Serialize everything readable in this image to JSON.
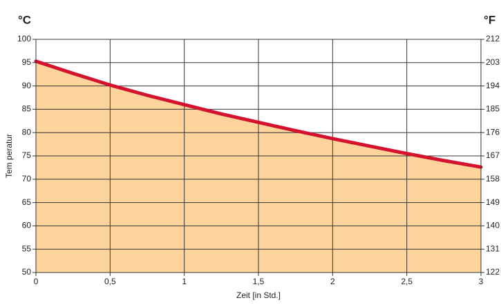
{
  "chart_data": {
    "type": "area",
    "left_unit": "°C",
    "right_unit": "°F",
    "xlabel": "Zeit [in Std.]",
    "ylabel": "Tem peratur",
    "x": [
      0,
      0.25,
      0.5,
      0.75,
      1,
      1.25,
      1.5,
      1.75,
      2,
      2.25,
      2.5,
      2.75,
      3
    ],
    "series": [
      {
        "color": "#d4122e",
        "fill_color": "#fcd49c",
        "values": [
          95.3,
          92.7,
          90.2,
          88.0,
          86.0,
          84.0,
          82.2,
          80.4,
          78.7,
          77.1,
          75.5,
          74.0,
          72.6
        ]
      }
    ],
    "xlim": [
      0,
      3
    ],
    "xticks": [
      0,
      {
        "value": 0.5,
        "label": "0,5"
      },
      1,
      {
        "value": 1.5,
        "label": "1,5"
      },
      2,
      {
        "value": 2.5,
        "label": "2,5"
      },
      3
    ],
    "ylim": [
      50,
      100
    ],
    "yticks": [
      50,
      55,
      60,
      65,
      70,
      75,
      80,
      85,
      90,
      95,
      100
    ],
    "y2lim": [
      122,
      212
    ],
    "y2ticks": [
      122,
      131,
      140,
      149,
      158,
      167,
      176,
      185,
      194,
      203,
      212
    ],
    "grid": true
  }
}
